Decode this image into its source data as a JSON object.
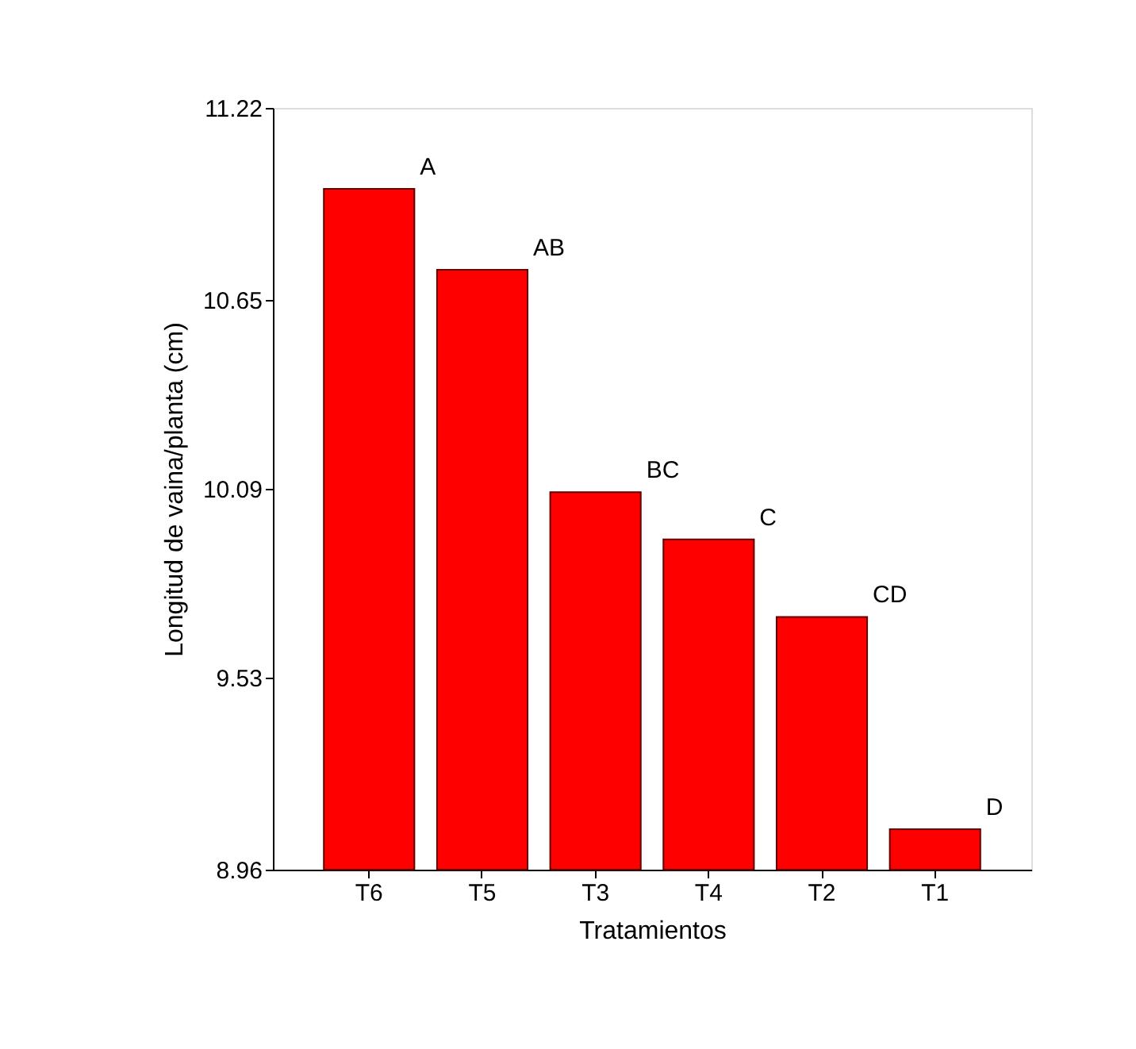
{
  "chart_data": {
    "type": "bar",
    "xlabel": "Tratamientos",
    "ylabel": "Longitud de vaina/planta (cm)",
    "categories": [
      "T6",
      "T5",
      "T3",
      "T4",
      "T2",
      "T1"
    ],
    "values": [
      10.98,
      10.74,
      10.08,
      9.94,
      9.71,
      9.08
    ],
    "color": "#ff0000",
    "ylim": [
      8.96,
      11.22
    ],
    "yticks": [
      8.96,
      9.53,
      10.09,
      10.65,
      11.22
    ],
    "grid": false,
    "annotations": [
      {
        "text": "A",
        "x": "T6",
        "y": 10.98
      },
      {
        "text": "AB",
        "x": "T5",
        "y": 10.74
      },
      {
        "text": "BC",
        "x": "T3",
        "y": 10.08
      },
      {
        "text": "C",
        "x": "T4",
        "y": 9.94
      },
      {
        "text": "CD",
        "x": "T2",
        "y": 9.71
      },
      {
        "text": "D",
        "x": "T1",
        "y": 9.08
      }
    ]
  }
}
